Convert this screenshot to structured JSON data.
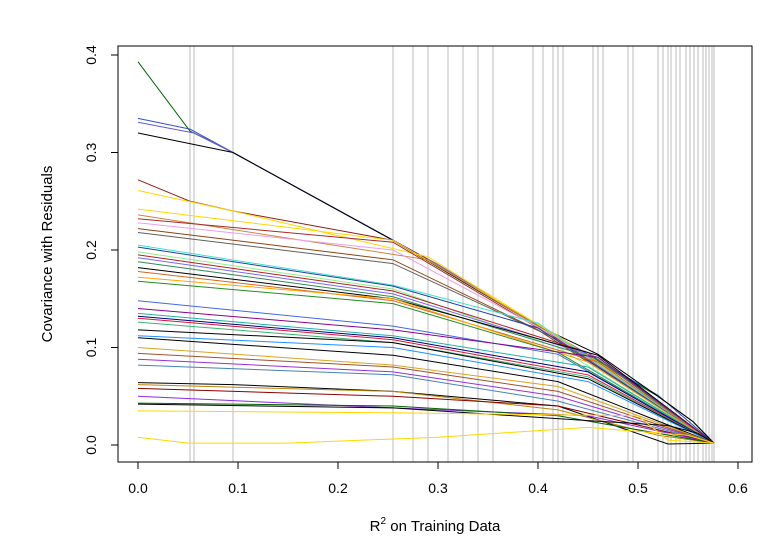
{
  "chart_data": {
    "type": "line",
    "title": "",
    "xlabel_main": "R",
    "xlabel_sup": "2",
    "xlabel_rest": " on Training Data",
    "ylabel": "Covariance with Residuals",
    "xlim": [
      0.0,
      0.6
    ],
    "ylim": [
      0.0,
      0.4
    ],
    "xticks": [
      0.0,
      0.1,
      0.2,
      0.3,
      0.4,
      0.5,
      0.6
    ],
    "xtick_labels": [
      "0.0",
      "0.1",
      "0.2",
      "0.3",
      "0.4",
      "0.5",
      "0.6"
    ],
    "yticks": [
      0.0,
      0.1,
      0.2,
      0.3,
      0.4
    ],
    "ytick_labels": [
      "0.0",
      "0.1",
      "0.2",
      "0.3",
      "0.4"
    ],
    "vertical_lines_x": [
      0.052,
      0.056,
      0.095,
      0.255,
      0.275,
      0.29,
      0.31,
      0.325,
      0.34,
      0.355,
      0.395,
      0.405,
      0.415,
      0.42,
      0.425,
      0.455,
      0.46,
      0.465,
      0.49,
      0.495,
      0.52,
      0.525,
      0.53,
      0.533,
      0.538,
      0.542,
      0.548,
      0.552,
      0.556,
      0.56,
      0.565,
      0.568,
      0.571,
      0.574,
      0.576
    ],
    "vertical_line_color": "#c8c8c8",
    "series": [
      {
        "color": "#006400",
        "values": [
          [
            0.0,
            0.393
          ],
          [
            0.052,
            0.322
          ],
          [
            0.095,
            0.3
          ],
          [
            0.255,
            0.21
          ],
          [
            0.4,
            0.122
          ],
          [
            0.52,
            0.05
          ],
          [
            0.555,
            0.024
          ],
          [
            0.576,
            0.002
          ]
        ]
      },
      {
        "color": "#3050c8",
        "values": [
          [
            0.0,
            0.335
          ],
          [
            0.052,
            0.324
          ],
          [
            0.095,
            0.3
          ],
          [
            0.255,
            0.21
          ],
          [
            0.4,
            0.123
          ],
          [
            0.52,
            0.051
          ],
          [
            0.576,
            0.002
          ]
        ]
      },
      {
        "color": "#6a5acd",
        "values": [
          [
            0.0,
            0.331
          ],
          [
            0.056,
            0.32
          ],
          [
            0.095,
            0.3
          ],
          [
            0.3,
            0.185
          ],
          [
            0.5,
            0.06
          ],
          [
            0.576,
            0.002
          ]
        ]
      },
      {
        "color": "#000000",
        "values": [
          [
            0.0,
            0.32
          ],
          [
            0.095,
            0.3
          ],
          [
            0.255,
            0.21
          ],
          [
            0.4,
            0.122
          ],
          [
            0.46,
            0.093
          ],
          [
            0.52,
            0.05
          ],
          [
            0.555,
            0.024
          ],
          [
            0.576,
            0.002
          ]
        ]
      },
      {
        "color": "#8b1a1a",
        "values": [
          [
            0.0,
            0.272
          ],
          [
            0.052,
            0.25
          ],
          [
            0.095,
            0.24
          ],
          [
            0.255,
            0.21
          ],
          [
            0.29,
            0.19
          ],
          [
            0.4,
            0.122
          ],
          [
            0.576,
            0.002
          ]
        ]
      },
      {
        "color": "#ffd700",
        "values": [
          [
            0.0,
            0.261
          ],
          [
            0.095,
            0.24
          ],
          [
            0.29,
            0.193
          ],
          [
            0.5,
            0.06
          ],
          [
            0.576,
            0.002
          ]
        ]
      },
      {
        "color": "#ffd700",
        "values": [
          [
            0.0,
            0.242
          ],
          [
            0.255,
            0.21
          ],
          [
            0.42,
            0.112
          ],
          [
            0.576,
            0.002
          ]
        ]
      },
      {
        "color": "#cd853f",
        "values": [
          [
            0.0,
            0.236
          ],
          [
            0.29,
            0.19
          ],
          [
            0.5,
            0.06
          ],
          [
            0.576,
            0.002
          ]
        ]
      },
      {
        "color": "#a52a2a",
        "values": [
          [
            0.0,
            0.232
          ],
          [
            0.255,
            0.208
          ],
          [
            0.4,
            0.12
          ],
          [
            0.576,
            0.002
          ]
        ]
      },
      {
        "color": "#e8a0e8",
        "values": [
          [
            0.0,
            0.228
          ],
          [
            0.255,
            0.2
          ],
          [
            0.42,
            0.11
          ],
          [
            0.576,
            0.002
          ]
        ]
      },
      {
        "color": "#8b4513",
        "values": [
          [
            0.0,
            0.222
          ],
          [
            0.255,
            0.19
          ],
          [
            0.4,
            0.118
          ],
          [
            0.576,
            0.002
          ]
        ]
      },
      {
        "color": "#5f5f5f",
        "values": [
          [
            0.0,
            0.218
          ],
          [
            0.255,
            0.186
          ],
          [
            0.42,
            0.108
          ],
          [
            0.576,
            0.002
          ]
        ]
      },
      {
        "color": "#40e0d0",
        "values": [
          [
            0.0,
            0.205
          ],
          [
            0.255,
            0.164
          ],
          [
            0.4,
            0.125
          ],
          [
            0.576,
            0.002
          ]
        ]
      },
      {
        "color": "#1e3fa0",
        "values": [
          [
            0.0,
            0.203
          ],
          [
            0.255,
            0.163
          ],
          [
            0.4,
            0.12
          ],
          [
            0.576,
            0.002
          ]
        ]
      },
      {
        "color": "#90ee90",
        "values": [
          [
            0.0,
            0.198
          ],
          [
            0.255,
            0.16
          ],
          [
            0.42,
            0.1
          ],
          [
            0.576,
            0.002
          ]
        ]
      },
      {
        "color": "#b22222",
        "values": [
          [
            0.0,
            0.195
          ],
          [
            0.255,
            0.158
          ],
          [
            0.45,
            0.095
          ],
          [
            0.576,
            0.002
          ]
        ]
      },
      {
        "color": "#7b68ee",
        "values": [
          [
            0.0,
            0.192
          ],
          [
            0.255,
            0.155
          ],
          [
            0.46,
            0.09
          ],
          [
            0.576,
            0.002
          ]
        ]
      },
      {
        "color": "#2e8b57",
        "values": [
          [
            0.0,
            0.188
          ],
          [
            0.255,
            0.152
          ],
          [
            0.46,
            0.088
          ],
          [
            0.576,
            0.002
          ]
        ]
      },
      {
        "color": "#000000",
        "values": [
          [
            0.0,
            0.182
          ],
          [
            0.255,
            0.15
          ],
          [
            0.46,
            0.092
          ],
          [
            0.576,
            0.002
          ]
        ]
      },
      {
        "color": "#d2691e",
        "values": [
          [
            0.0,
            0.178
          ],
          [
            0.255,
            0.148
          ],
          [
            0.46,
            0.085
          ],
          [
            0.576,
            0.002
          ]
        ]
      },
      {
        "color": "#ffa500",
        "values": [
          [
            0.0,
            0.172
          ],
          [
            0.255,
            0.15
          ],
          [
            0.45,
            0.085
          ],
          [
            0.576,
            0.002
          ]
        ]
      },
      {
        "color": "#228b22",
        "values": [
          [
            0.0,
            0.168
          ],
          [
            0.255,
            0.145
          ],
          [
            0.42,
            0.095
          ],
          [
            0.576,
            0.002
          ]
        ]
      },
      {
        "color": "#4169e1",
        "values": [
          [
            0.0,
            0.148
          ],
          [
            0.255,
            0.122
          ],
          [
            0.42,
            0.093
          ],
          [
            0.576,
            0.002
          ]
        ]
      },
      {
        "color": "#8b008b",
        "values": [
          [
            0.0,
            0.14
          ],
          [
            0.255,
            0.118
          ],
          [
            0.46,
            0.09
          ],
          [
            0.576,
            0.002
          ]
        ]
      },
      {
        "color": "#20b2aa",
        "values": [
          [
            0.0,
            0.135
          ],
          [
            0.255,
            0.112
          ],
          [
            0.45,
            0.08
          ],
          [
            0.576,
            0.002
          ]
        ]
      },
      {
        "color": "#000080",
        "values": [
          [
            0.0,
            0.132
          ],
          [
            0.255,
            0.11
          ],
          [
            0.45,
            0.075
          ],
          [
            0.576,
            0.002
          ]
        ]
      },
      {
        "color": "#dc143c",
        "values": [
          [
            0.0,
            0.13
          ],
          [
            0.255,
            0.108
          ],
          [
            0.45,
            0.072
          ],
          [
            0.576,
            0.002
          ]
        ]
      },
      {
        "color": "#3cb371",
        "values": [
          [
            0.0,
            0.126
          ],
          [
            0.255,
            0.105
          ],
          [
            0.45,
            0.07
          ],
          [
            0.576,
            0.002
          ]
        ]
      },
      {
        "color": "#000000",
        "values": [
          [
            0.0,
            0.118
          ],
          [
            0.255,
            0.105
          ],
          [
            0.45,
            0.068
          ],
          [
            0.576,
            0.002
          ]
        ]
      },
      {
        "color": "#1e90ff",
        "values": [
          [
            0.0,
            0.112
          ],
          [
            0.255,
            0.1
          ],
          [
            0.45,
            0.065
          ],
          [
            0.576,
            0.002
          ]
        ]
      },
      {
        "color": "#000000",
        "values": [
          [
            0.0,
            0.11
          ],
          [
            0.255,
            0.092
          ],
          [
            0.42,
            0.065
          ],
          [
            0.576,
            0.002
          ]
        ]
      },
      {
        "color": "#daa520",
        "values": [
          [
            0.0,
            0.1
          ],
          [
            0.255,
            0.082
          ],
          [
            0.42,
            0.06
          ],
          [
            0.576,
            0.002
          ]
        ]
      },
      {
        "color": "#a0522d",
        "values": [
          [
            0.0,
            0.094
          ],
          [
            0.255,
            0.08
          ],
          [
            0.42,
            0.055
          ],
          [
            0.576,
            0.002
          ]
        ]
      },
      {
        "color": "#9932cc",
        "values": [
          [
            0.0,
            0.088
          ],
          [
            0.255,
            0.075
          ],
          [
            0.42,
            0.05
          ],
          [
            0.576,
            0.002
          ]
        ]
      },
      {
        "color": "#4682b4",
        "values": [
          [
            0.0,
            0.082
          ],
          [
            0.255,
            0.072
          ],
          [
            0.42,
            0.045
          ],
          [
            0.576,
            0.002
          ]
        ]
      },
      {
        "color": "#000000",
        "values": [
          [
            0.0,
            0.064
          ],
          [
            0.095,
            0.062
          ],
          [
            0.255,
            0.055
          ],
          [
            0.42,
            0.04
          ],
          [
            0.53,
            0.001
          ],
          [
            0.576,
            0.002
          ]
        ]
      },
      {
        "color": "#b8860b",
        "values": [
          [
            0.0,
            0.062
          ],
          [
            0.255,
            0.055
          ],
          [
            0.42,
            0.036
          ],
          [
            0.52,
            0.01
          ],
          [
            0.576,
            0.002
          ]
        ]
      },
      {
        "color": "#8b0000",
        "values": [
          [
            0.0,
            0.058
          ],
          [
            0.255,
            0.05
          ],
          [
            0.42,
            0.04
          ],
          [
            0.576,
            0.002
          ]
        ]
      },
      {
        "color": "#8a2be2",
        "values": [
          [
            0.0,
            0.05
          ],
          [
            0.255,
            0.038
          ],
          [
            0.45,
            0.03
          ],
          [
            0.576,
            0.002
          ]
        ]
      },
      {
        "color": "#006400",
        "values": [
          [
            0.0,
            0.043
          ],
          [
            0.255,
            0.04
          ],
          [
            0.42,
            0.03
          ],
          [
            0.576,
            0.002
          ]
        ]
      },
      {
        "color": "#000000",
        "values": [
          [
            0.0,
            0.042
          ],
          [
            0.255,
            0.038
          ],
          [
            0.45,
            0.025
          ],
          [
            0.53,
            0.02
          ],
          [
            0.56,
            0.012
          ],
          [
            0.576,
            0.002
          ]
        ]
      },
      {
        "color": "#ffd700",
        "values": [
          [
            0.0,
            0.035
          ],
          [
            0.255,
            0.033
          ],
          [
            0.5,
            0.03
          ],
          [
            0.53,
            0.005
          ],
          [
            0.576,
            0.002
          ]
        ]
      },
      {
        "color": "#ffd700",
        "values": [
          [
            0.0,
            0.008
          ],
          [
            0.05,
            0.002
          ],
          [
            0.15,
            0.002
          ],
          [
            0.3,
            0.008
          ],
          [
            0.45,
            0.018
          ],
          [
            0.55,
            0.01
          ],
          [
            0.576,
            0.002
          ]
        ]
      }
    ]
  }
}
